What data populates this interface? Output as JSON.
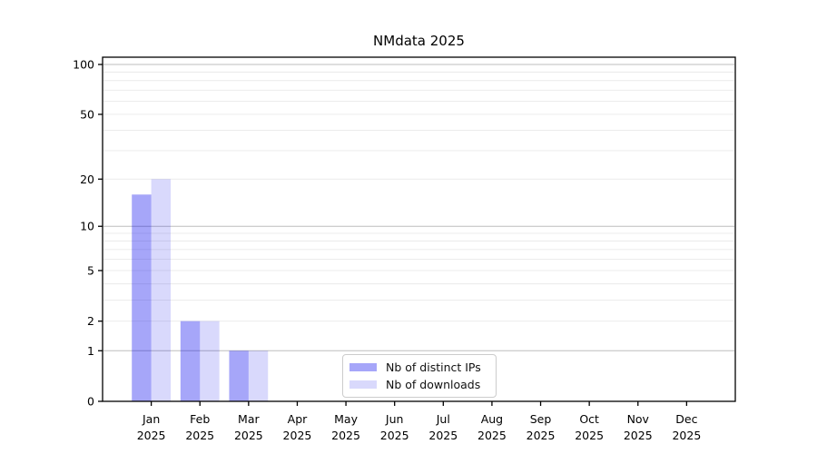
{
  "chart_data": {
    "type": "bar",
    "title": "NMdata 2025",
    "categories": [
      "Jan",
      "Feb",
      "Mar",
      "Apr",
      "May",
      "Jun",
      "Jul",
      "Aug",
      "Sep",
      "Oct",
      "Nov",
      "Dec"
    ],
    "x_tick_second_line": "2025",
    "series": [
      {
        "name": "Nb of distinct IPs",
        "color": "rgba(0,0,238,0.35)",
        "values": [
          16,
          2,
          1,
          0,
          0,
          0,
          0,
          0,
          0,
          0,
          0,
          0
        ]
      },
      {
        "name": "Nb of downloads",
        "color": "rgba(0,0,238,0.15)",
        "values": [
          20,
          2,
          1,
          0,
          0,
          0,
          0,
          0,
          0,
          0,
          0,
          0
        ]
      }
    ],
    "yscale": "log10(1+y)",
    "ylabel": "",
    "xlabel": "",
    "ylim": [
      0,
      110
    ],
    "y_ticks": [
      0,
      1,
      2,
      5,
      10,
      20,
      50,
      100
    ],
    "major_gridlines": [
      1,
      10,
      100
    ],
    "minor_gridlines": [
      2,
      3,
      4,
      5,
      6,
      7,
      8,
      9,
      20,
      30,
      40,
      50,
      60,
      70,
      80,
      90
    ],
    "grid": true,
    "legend_position": "inside-bottom-center"
  },
  "colors": {
    "bar_distinct_ips_rendered": "#a9a9f2",
    "bar_downloads_rendered": "#dbdbf9",
    "major_grid": "#bdbdbd",
    "minor_grid": "#eaeaea",
    "axis": "#000000",
    "text": "#000000",
    "legend_border": "#cccccc",
    "background": "#ffffff"
  }
}
